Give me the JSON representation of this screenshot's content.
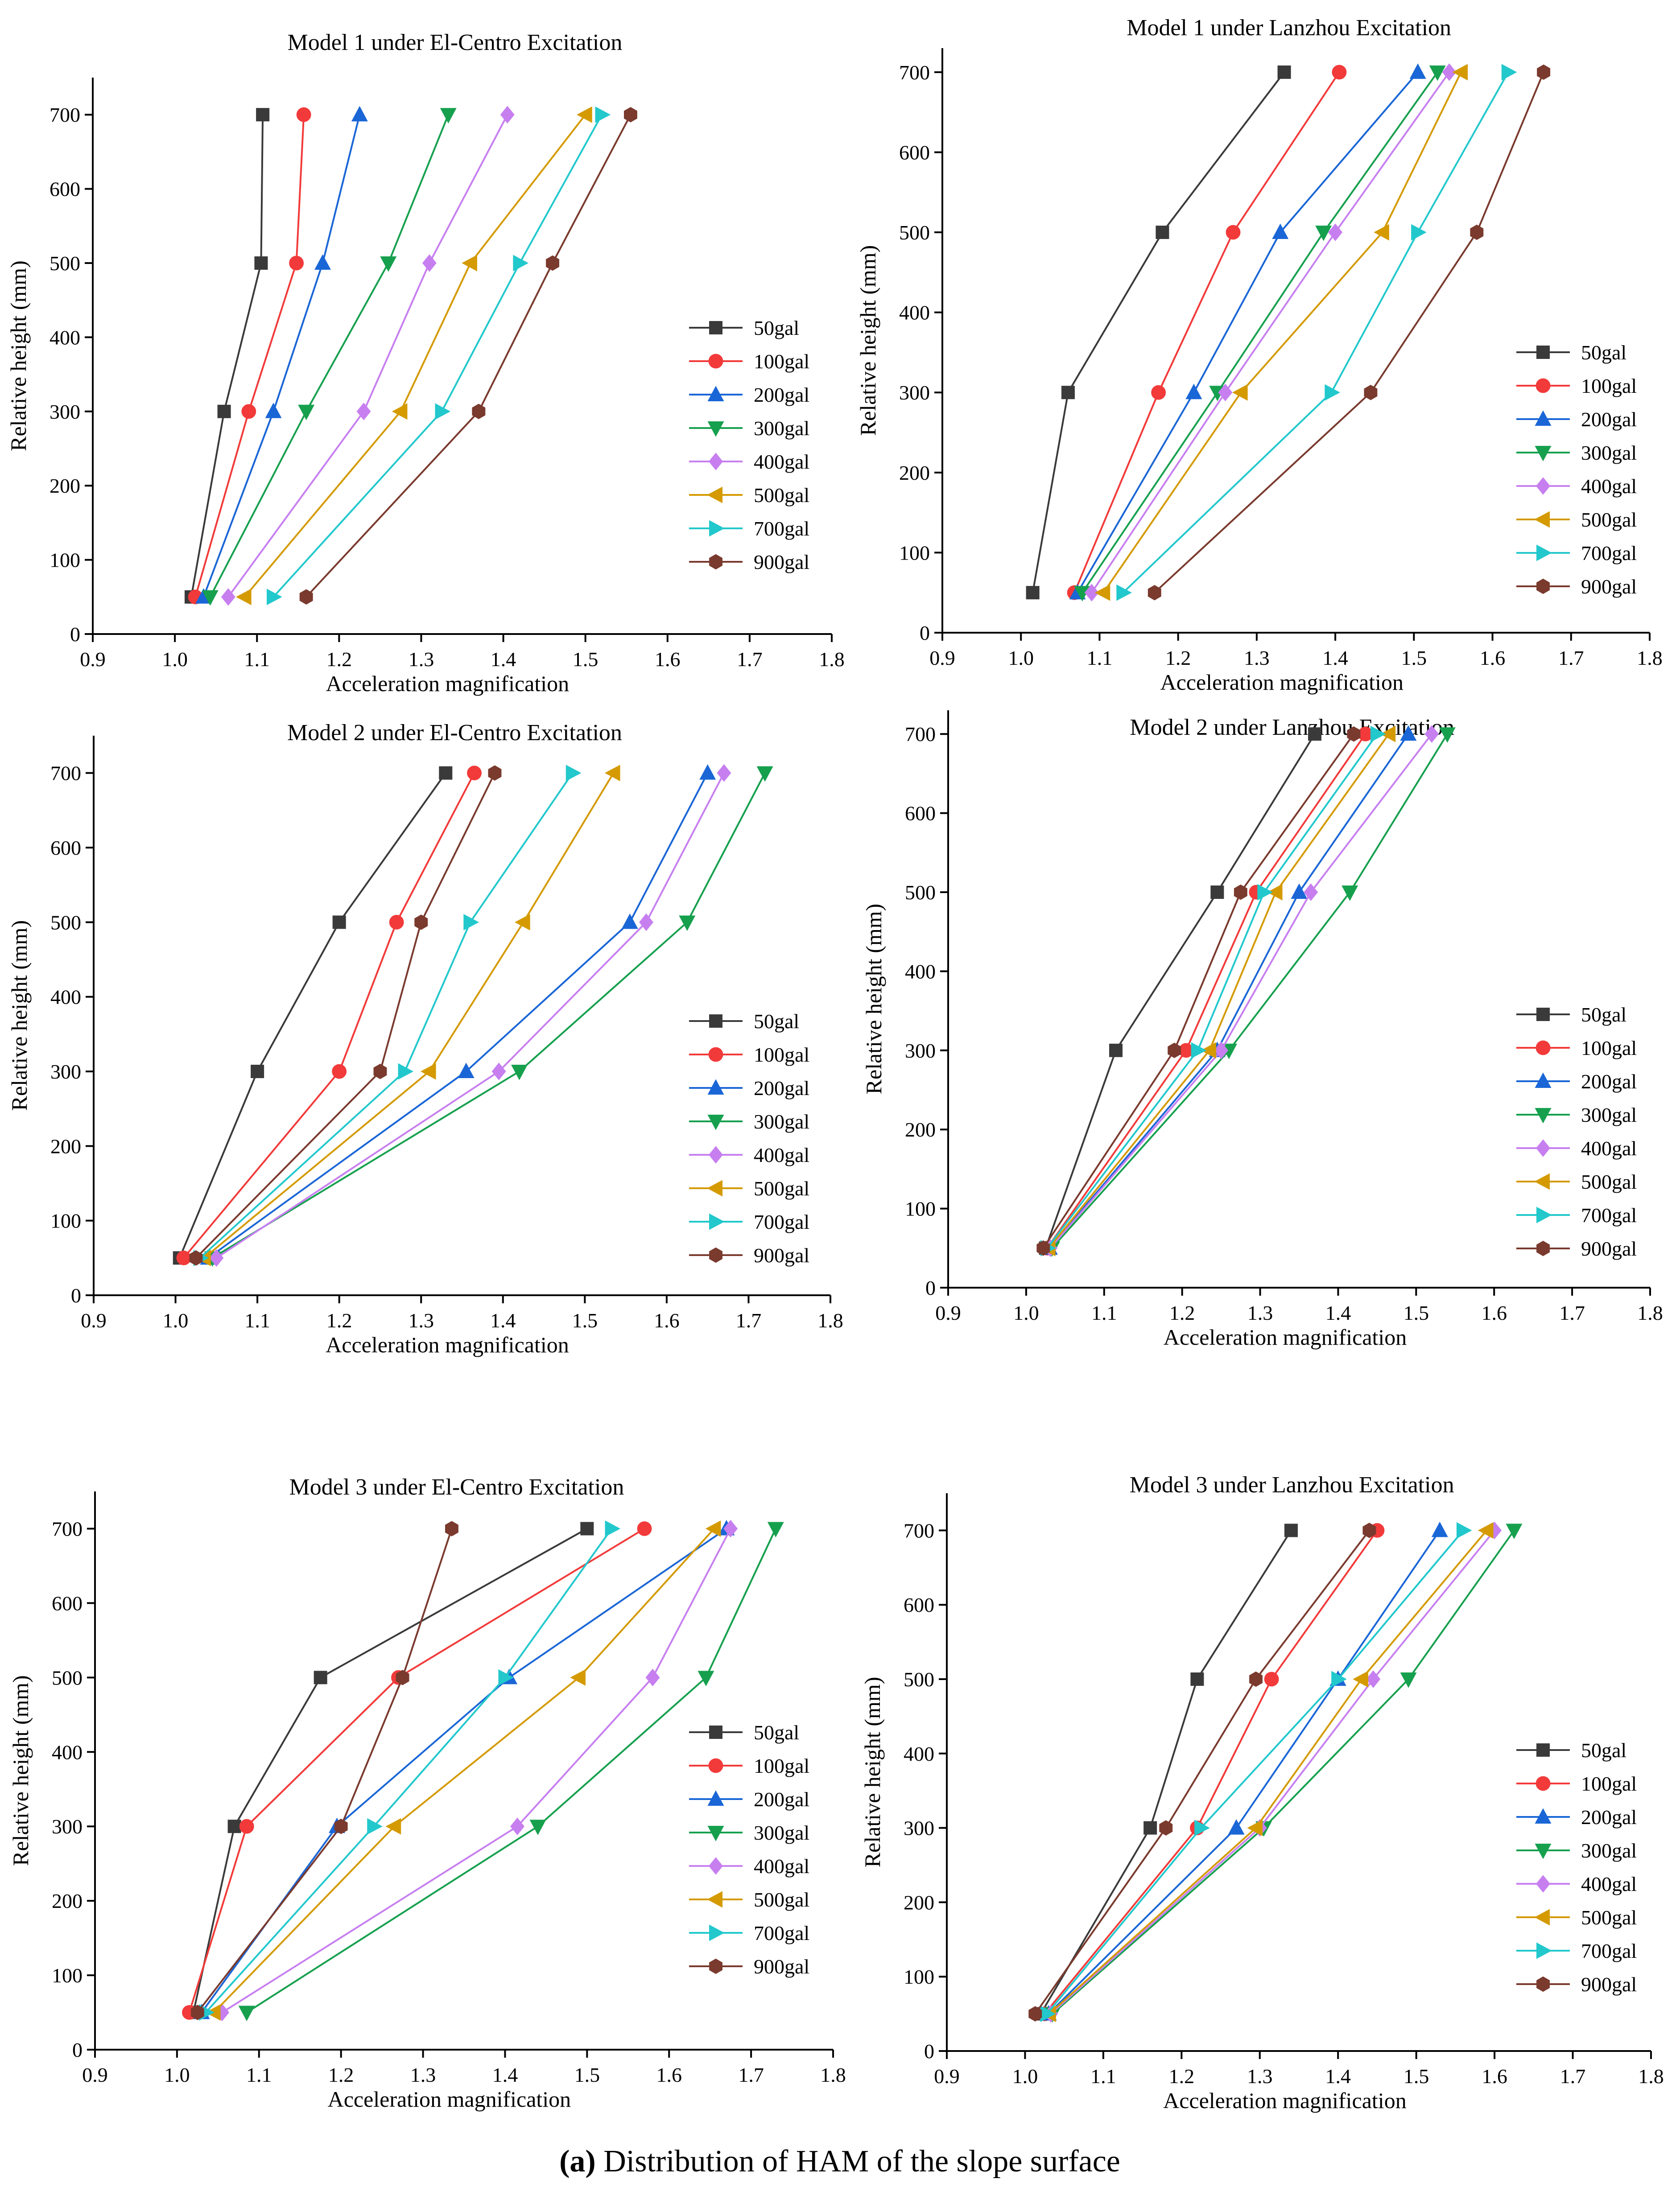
{
  "figure": {
    "caption_label": "(a)",
    "caption_text": " Distribution of HAM of the slope surface"
  },
  "legend_labels": [
    "50gal",
    "100gal",
    "200gal",
    "300gal",
    "400gal",
    "500gal",
    "700gal",
    "900gal"
  ],
  "colors": {
    "50gal": "#3a3a3a",
    "100gal": "#f23a3a",
    "200gal": "#1a66d6",
    "300gal": "#16a04e",
    "400gal": "#c77ff0",
    "500gal": "#d49a00",
    "700gal": "#22c8cc",
    "900gal": "#7a3a2e",
    "axis": "#000000"
  },
  "markers": [
    "square",
    "circle",
    "triangle-up",
    "triangle-down",
    "diamond",
    "triangle-left",
    "triangle-right",
    "hexagon"
  ],
  "chart_data": [
    {
      "type": "line",
      "title": "Model 1 under El-Centro Excitation",
      "xlabel": "Acceleration magnification",
      "ylabel": "Relative height (mm)",
      "xlim": [
        0.9,
        1.8
      ],
      "ylim": [
        0,
        750
      ],
      "x_ticks": [
        "0.9",
        "1.0",
        "1.1",
        "1.2",
        "1.3",
        "1.4",
        "1.5",
        "1.6",
        "1.7",
        "1.8"
      ],
      "y_ticks": [
        "0",
        "100",
        "200",
        "300",
        "400",
        "500",
        "600",
        "700"
      ],
      "heights": [
        50,
        300,
        500,
        700
      ],
      "legend_position": "right-middle",
      "series": [
        {
          "name": "50gal",
          "values": [
            1.02,
            1.06,
            1.105,
            1.107
          ]
        },
        {
          "name": "100gal",
          "values": [
            1.025,
            1.09,
            1.148,
            1.157
          ]
        },
        {
          "name": "200gal",
          "values": [
            1.035,
            1.12,
            1.18,
            1.225
          ]
        },
        {
          "name": "300gal",
          "values": [
            1.043,
            1.16,
            1.26,
            1.333
          ]
        },
        {
          "name": "400gal",
          "values": [
            1.065,
            1.23,
            1.31,
            1.405
          ]
        },
        {
          "name": "500gal",
          "values": [
            1.085,
            1.275,
            1.36,
            1.5
          ]
        },
        {
          "name": "700gal",
          "values": [
            1.12,
            1.325,
            1.42,
            1.52
          ]
        },
        {
          "name": "900gal",
          "values": [
            1.16,
            1.37,
            1.46,
            1.555
          ]
        }
      ]
    },
    {
      "type": "line",
      "title": "Model 1 under Lanzhou Excitation",
      "xlabel": "Acceleration magnification",
      "ylabel": "Relative height (mm)",
      "xlim": [
        0.9,
        1.8
      ],
      "ylim": [
        0,
        730
      ],
      "x_ticks": [
        "0.9",
        "1.0",
        "1.1",
        "1.2",
        "1.3",
        "1.4",
        "1.5",
        "1.6",
        "1.7",
        "1.8"
      ],
      "y_ticks": [
        "0",
        "100",
        "200",
        "300",
        "400",
        "500",
        "600",
        "700"
      ],
      "heights": [
        50,
        300,
        500,
        700
      ],
      "legend_position": "right-middle",
      "series": [
        {
          "name": "50gal",
          "values": [
            1.015,
            1.06,
            1.18,
            1.335
          ]
        },
        {
          "name": "100gal",
          "values": [
            1.068,
            1.175,
            1.27,
            1.405
          ]
        },
        {
          "name": "200gal",
          "values": [
            1.072,
            1.22,
            1.33,
            1.505
          ]
        },
        {
          "name": "300gal",
          "values": [
            1.078,
            1.25,
            1.385,
            1.53
          ]
        },
        {
          "name": "400gal",
          "values": [
            1.09,
            1.26,
            1.4,
            1.545
          ]
        },
        {
          "name": "500gal",
          "values": [
            1.105,
            1.28,
            1.46,
            1.56
          ]
        },
        {
          "name": "700gal",
          "values": [
            1.13,
            1.395,
            1.505,
            1.62
          ]
        },
        {
          "name": "900gal",
          "values": [
            1.17,
            1.445,
            1.58,
            1.665
          ]
        }
      ]
    },
    {
      "type": "line",
      "title": "Model 2 under El-Centro Excitation",
      "xlabel": "Acceleration magnification",
      "ylabel": "Relative height (mm)",
      "xlim": [
        0.9,
        1.8
      ],
      "ylim": [
        0,
        750
      ],
      "x_ticks": [
        "0.9",
        "1.0",
        "1.1",
        "1.2",
        "1.3",
        "1.4",
        "1.5",
        "1.6",
        "1.7",
        "1.8"
      ],
      "y_ticks": [
        "0",
        "100",
        "200",
        "300",
        "400",
        "500",
        "600",
        "700"
      ],
      "heights": [
        50,
        300,
        500,
        700
      ],
      "legend_position": "right-middle",
      "series": [
        {
          "name": "50gal",
          "values": [
            1.005,
            1.1,
            1.2,
            1.33
          ]
        },
        {
          "name": "100gal",
          "values": [
            1.01,
            1.2,
            1.27,
            1.365
          ]
        },
        {
          "name": "200gal",
          "values": [
            1.04,
            1.355,
            1.555,
            1.65
          ]
        },
        {
          "name": "300gal",
          "values": [
            1.045,
            1.42,
            1.625,
            1.72
          ]
        },
        {
          "name": "400gal",
          "values": [
            1.05,
            1.395,
            1.575,
            1.67
          ]
        },
        {
          "name": "500gal",
          "values": [
            1.035,
            1.31,
            1.425,
            1.535
          ]
        },
        {
          "name": "700gal",
          "values": [
            1.03,
            1.28,
            1.36,
            1.485
          ]
        },
        {
          "name": "900gal",
          "values": [
            1.025,
            1.25,
            1.3,
            1.39
          ]
        }
      ]
    },
    {
      "type": "line",
      "title": "Model 2 under Lanzhou Excitation",
      "xlabel": "Acceleration magnification",
      "ylabel": "Relative height (mm)",
      "xlim": [
        0.9,
        1.8
      ],
      "ylim": [
        0,
        730
      ],
      "x_ticks": [
        "0.9",
        "1.0",
        "1.1",
        "1.2",
        "1.3",
        "1.4",
        "1.5",
        "1.6",
        "1.7",
        "1.8"
      ],
      "y_ticks": [
        "0",
        "100",
        "200",
        "300",
        "400",
        "500",
        "600",
        "700"
      ],
      "heights": [
        50,
        300,
        500,
        700
      ],
      "legend_position": "right-middle",
      "series": [
        {
          "name": "50gal",
          "values": [
            1.025,
            1.115,
            1.245,
            1.37
          ]
        },
        {
          "name": "100gal",
          "values": [
            1.027,
            1.205,
            1.295,
            1.435
          ]
        },
        {
          "name": "200gal",
          "values": [
            1.03,
            1.245,
            1.35,
            1.49
          ]
        },
        {
          "name": "300gal",
          "values": [
            1.033,
            1.26,
            1.415,
            1.54
          ]
        },
        {
          "name": "400gal",
          "values": [
            1.031,
            1.25,
            1.365,
            1.52
          ]
        },
        {
          "name": "500gal",
          "values": [
            1.029,
            1.235,
            1.32,
            1.465
          ]
        },
        {
          "name": "700gal",
          "values": [
            1.027,
            1.22,
            1.305,
            1.45
          ]
        },
        {
          "name": "900gal",
          "values": [
            1.022,
            1.19,
            1.275,
            1.42
          ]
        }
      ]
    },
    {
      "type": "line",
      "title": "Model 3 under El-Centro Excitation",
      "xlabel": "Acceleration magnification",
      "ylabel": "Relative height (mm)",
      "xlim": [
        0.9,
        1.8
      ],
      "ylim": [
        0,
        750
      ],
      "x_ticks": [
        "0.9",
        "1.0",
        "1.1",
        "1.2",
        "1.3",
        "1.4",
        "1.5",
        "1.6",
        "1.7",
        "1.8"
      ],
      "y_ticks": [
        "0",
        "100",
        "200",
        "300",
        "400",
        "500",
        "600",
        "700"
      ],
      "heights": [
        50,
        300,
        500,
        700
      ],
      "legend_position": "right-middle",
      "series": [
        {
          "name": "50gal",
          "values": [
            1.02,
            1.07,
            1.175,
            1.5
          ]
        },
        {
          "name": "100gal",
          "values": [
            1.015,
            1.085,
            1.27,
            1.57
          ]
        },
        {
          "name": "200gal",
          "values": [
            1.03,
            1.195,
            1.405,
            1.67
          ]
        },
        {
          "name": "300gal",
          "values": [
            1.085,
            1.44,
            1.645,
            1.73
          ]
        },
        {
          "name": "400gal",
          "values": [
            1.055,
            1.415,
            1.58,
            1.675
          ]
        },
        {
          "name": "500gal",
          "values": [
            1.045,
            1.265,
            1.49,
            1.655
          ]
        },
        {
          "name": "700gal",
          "values": [
            1.035,
            1.24,
            1.4,
            1.53
          ]
        },
        {
          "name": "900gal",
          "values": [
            1.025,
            1.2,
            1.275,
            1.335
          ]
        }
      ]
    },
    {
      "type": "line",
      "title": "Model 3 under Lanzhou Excitation",
      "xlabel": "Acceleration magnification",
      "ylabel": "Relative height (mm)",
      "xlim": [
        0.9,
        1.8
      ],
      "ylim": [
        0,
        750
      ],
      "x_ticks": [
        "0.9",
        "1.0",
        "1.1",
        "1.2",
        "1.3",
        "1.4",
        "1.5",
        "1.6",
        "1.7",
        "1.8"
      ],
      "y_ticks": [
        "0",
        "100",
        "200",
        "300",
        "400",
        "500",
        "600",
        "700"
      ],
      "heights": [
        50,
        300,
        500,
        700
      ],
      "legend_position": "right-middle",
      "series": [
        {
          "name": "50gal",
          "values": [
            1.02,
            1.16,
            1.22,
            1.34
          ]
        },
        {
          "name": "100gal",
          "values": [
            1.025,
            1.22,
            1.315,
            1.45
          ]
        },
        {
          "name": "200gal",
          "values": [
            1.03,
            1.27,
            1.4,
            1.53
          ]
        },
        {
          "name": "300gal",
          "values": [
            1.035,
            1.305,
            1.49,
            1.625
          ]
        },
        {
          "name": "400gal",
          "values": [
            1.033,
            1.3,
            1.445,
            1.6
          ]
        },
        {
          "name": "500gal",
          "values": [
            1.031,
            1.295,
            1.43,
            1.59
          ]
        },
        {
          "name": "700gal",
          "values": [
            1.028,
            1.225,
            1.4,
            1.56
          ]
        },
        {
          "name": "900gal",
          "values": [
            1.013,
            1.18,
            1.295,
            1.44
          ]
        }
      ]
    }
  ]
}
